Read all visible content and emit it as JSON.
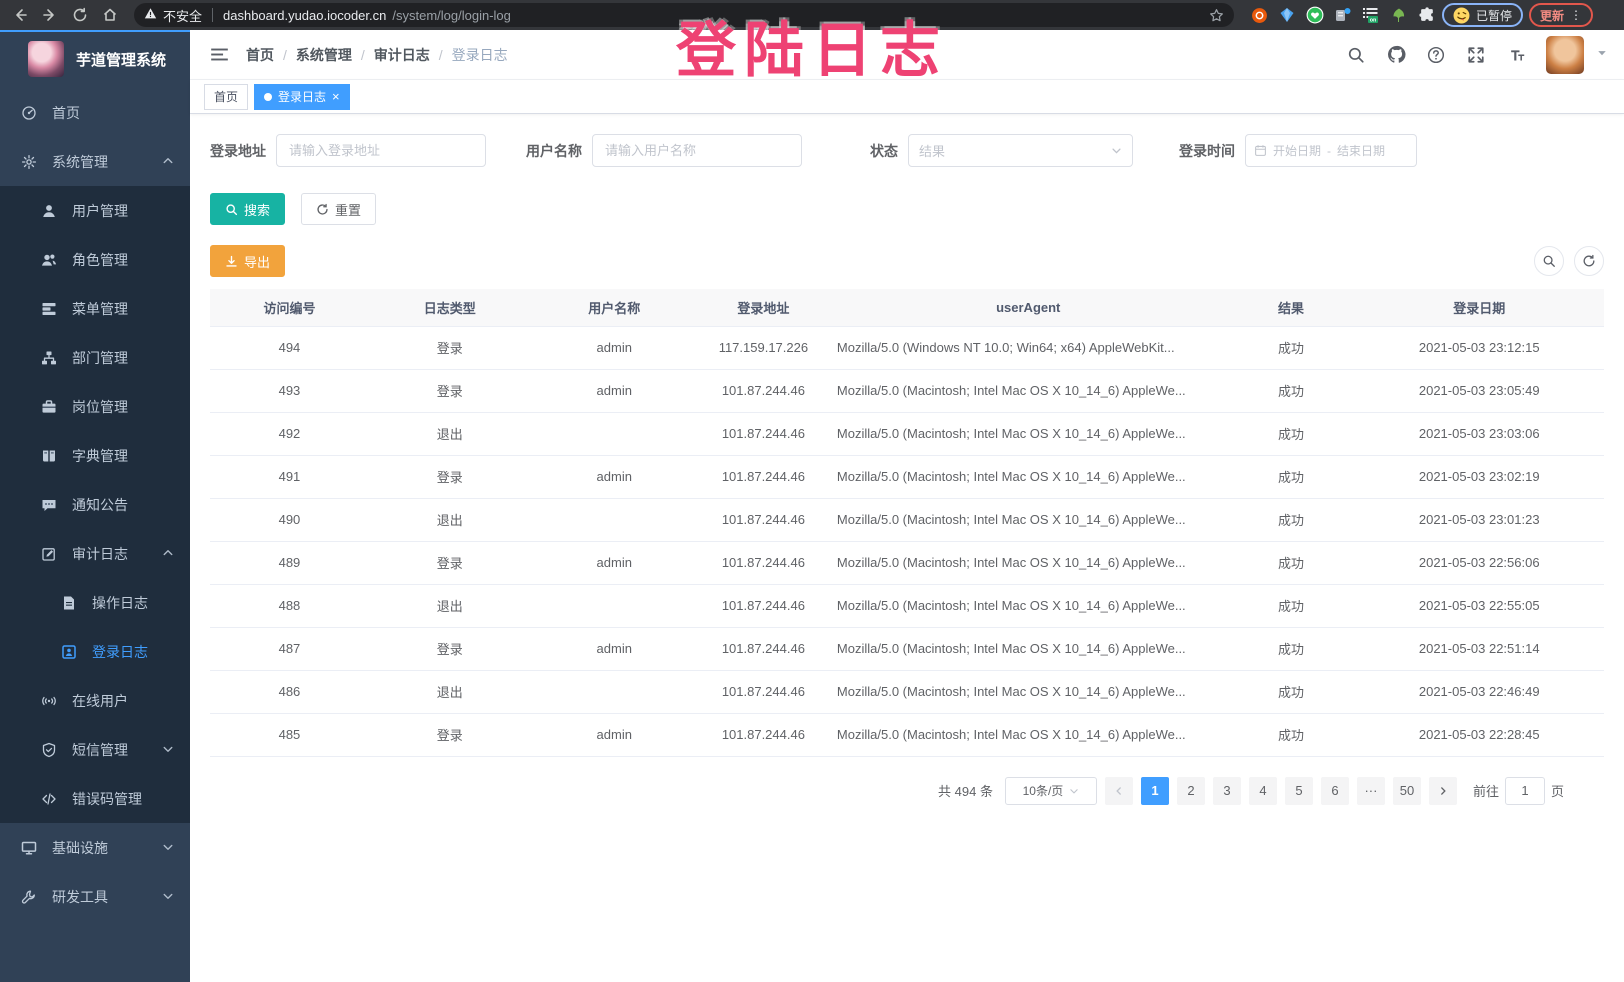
{
  "browser": {
    "security_warning": "不安全",
    "url_host": "dashboard.yudao.iocoder.cn",
    "url_path": "/system/log/login-log",
    "profile_badge": "已暂停",
    "update_button": "更新"
  },
  "overlay": {
    "text": "登陆日志"
  },
  "sidebar": {
    "title": "芋道管理系统",
    "items": [
      {
        "key": "home",
        "label": "首页",
        "icon": "dashboard",
        "level": 1
      },
      {
        "key": "system-mgmt",
        "label": "系统管理",
        "icon": "gear",
        "level": 1,
        "arrow": "up"
      },
      {
        "key": "user-mgmt",
        "label": "用户管理",
        "icon": "user",
        "level": 2
      },
      {
        "key": "role-mgmt",
        "label": "角色管理",
        "icon": "users",
        "level": 2
      },
      {
        "key": "menu-mgmt",
        "label": "菜单管理",
        "icon": "menu",
        "level": 2
      },
      {
        "key": "dept-mgmt",
        "label": "部门管理",
        "icon": "tree",
        "level": 2
      },
      {
        "key": "post-mgmt",
        "label": "岗位管理",
        "icon": "briefcase",
        "level": 2
      },
      {
        "key": "dict-mgmt",
        "label": "字典管理",
        "icon": "book",
        "level": 2
      },
      {
        "key": "notice",
        "label": "通知公告",
        "icon": "message",
        "level": 2
      },
      {
        "key": "audit-log",
        "label": "审计日志",
        "icon": "edit",
        "level": 2,
        "arrow": "up"
      },
      {
        "key": "operate-log",
        "label": "操作日志",
        "icon": "document",
        "level": 3
      },
      {
        "key": "login-log",
        "label": "登录日志",
        "icon": "login",
        "level": 3,
        "active": true
      },
      {
        "key": "online-user",
        "label": "在线用户",
        "icon": "online",
        "level": 2
      },
      {
        "key": "sms-mgmt",
        "label": "短信管理",
        "icon": "shield",
        "level": 2,
        "arrow": "down"
      },
      {
        "key": "errcode-mgmt",
        "label": "错误码管理",
        "icon": "code",
        "level": 2
      },
      {
        "key": "infra",
        "label": "基础设施",
        "icon": "monitor",
        "level": 1,
        "arrow": "down"
      },
      {
        "key": "dev-tool",
        "label": "研发工具",
        "icon": "tool",
        "level": 1,
        "arrow": "down"
      }
    ]
  },
  "breadcrumb": [
    "首页",
    "系统管理",
    "审计日志",
    "登录日志"
  ],
  "tabs": [
    {
      "label": "首页",
      "active": false
    },
    {
      "label": "登录日志",
      "active": true,
      "closable": true
    }
  ],
  "filters": {
    "address_label": "登录地址",
    "address_placeholder": "请输入登录地址",
    "username_label": "用户名称",
    "username_placeholder": "请输入用户名称",
    "status_label": "状态",
    "status_placeholder": "结果",
    "time_label": "登录时间",
    "start_placeholder": "开始日期",
    "range_separator": "-",
    "end_placeholder": "结束日期",
    "search_button": "搜索",
    "reset_button": "重置"
  },
  "toolbar": {
    "export_label": "导出"
  },
  "table": {
    "columns": [
      "访问编号",
      "日志类型",
      "用户名称",
      "登录地址",
      "userAgent",
      "结果",
      "登录日期"
    ],
    "rows": [
      {
        "id": "494",
        "type": "登录",
        "user": "admin",
        "ip": "117.159.17.226",
        "ua": "Mozilla/5.0 (Windows NT 10.0; Win64; x64) AppleWebKit...",
        "result": "成功",
        "time": "2021-05-03 23:12:15"
      },
      {
        "id": "493",
        "type": "登录",
        "user": "admin",
        "ip": "101.87.244.46",
        "ua": "Mozilla/5.0 (Macintosh; Intel Mac OS X 10_14_6) AppleWe...",
        "result": "成功",
        "time": "2021-05-03 23:05:49"
      },
      {
        "id": "492",
        "type": "退出",
        "user": "",
        "ip": "101.87.244.46",
        "ua": "Mozilla/5.0 (Macintosh; Intel Mac OS X 10_14_6) AppleWe...",
        "result": "成功",
        "time": "2021-05-03 23:03:06"
      },
      {
        "id": "491",
        "type": "登录",
        "user": "admin",
        "ip": "101.87.244.46",
        "ua": "Mozilla/5.0 (Macintosh; Intel Mac OS X 10_14_6) AppleWe...",
        "result": "成功",
        "time": "2021-05-03 23:02:19"
      },
      {
        "id": "490",
        "type": "退出",
        "user": "",
        "ip": "101.87.244.46",
        "ua": "Mozilla/5.0 (Macintosh; Intel Mac OS X 10_14_6) AppleWe...",
        "result": "成功",
        "time": "2021-05-03 23:01:23"
      },
      {
        "id": "489",
        "type": "登录",
        "user": "admin",
        "ip": "101.87.244.46",
        "ua": "Mozilla/5.0 (Macintosh; Intel Mac OS X 10_14_6) AppleWe...",
        "result": "成功",
        "time": "2021-05-03 22:56:06"
      },
      {
        "id": "488",
        "type": "退出",
        "user": "",
        "ip": "101.87.244.46",
        "ua": "Mozilla/5.0 (Macintosh; Intel Mac OS X 10_14_6) AppleWe...",
        "result": "成功",
        "time": "2021-05-03 22:55:05"
      },
      {
        "id": "487",
        "type": "登录",
        "user": "admin",
        "ip": "101.87.244.46",
        "ua": "Mozilla/5.0 (Macintosh; Intel Mac OS X 10_14_6) AppleWe...",
        "result": "成功",
        "time": "2021-05-03 22:51:14"
      },
      {
        "id": "486",
        "type": "退出",
        "user": "",
        "ip": "101.87.244.46",
        "ua": "Mozilla/5.0 (Macintosh; Intel Mac OS X 10_14_6) AppleWe...",
        "result": "成功",
        "time": "2021-05-03 22:46:49"
      },
      {
        "id": "485",
        "type": "登录",
        "user": "admin",
        "ip": "101.87.244.46",
        "ua": "Mozilla/5.0 (Macintosh; Intel Mac OS X 10_14_6) AppleWe...",
        "result": "成功",
        "time": "2021-05-03 22:28:45"
      }
    ]
  },
  "pagination": {
    "total": "共 494 条",
    "page_size": "10条/页",
    "pages": [
      "1",
      "2",
      "3",
      "4",
      "5",
      "6",
      "···",
      "50"
    ],
    "active_page": "1",
    "goto_label": "前往",
    "goto_value": "1",
    "goto_unit": "页"
  },
  "colors": {
    "accent": "#409eff",
    "search_button": "#17b3a3",
    "export_button": "#f2a33c",
    "annotation": "#ee4273",
    "sidebar_bg": "#304156",
    "submenu_bg": "#1f2d3d"
  }
}
